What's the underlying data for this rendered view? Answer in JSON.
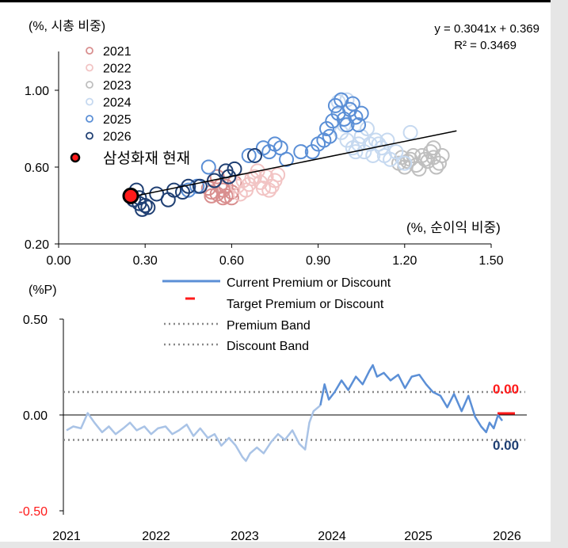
{
  "chart_data": [
    {
      "type": "scatter",
      "ylabel": "(%, 시총 비중)",
      "xlabel": "(%, 순이익 비중)",
      "xlim": [
        0,
        1.5
      ],
      "ylim": [
        0.2,
        1.2
      ],
      "xticks": [
        "0.00",
        "0.30",
        "0.60",
        "0.90",
        "1.20",
        "1.50"
      ],
      "yticks": [
        "0.20",
        "0.60",
        "1.00"
      ],
      "regression_equation": "y = 0.3041x + 0.369",
      "r_squared": "R² = 0.3469",
      "regression_line": {
        "slope": 0.3041,
        "intercept": 0.369,
        "x_range": [
          0.25,
          1.38
        ]
      },
      "legend_position": "top-left",
      "series": [
        {
          "name": "2021",
          "color": "#d98f8f",
          "points": [
            [
              0.53,
              0.47
            ],
            [
              0.55,
              0.46
            ],
            [
              0.57,
              0.48
            ],
            [
              0.58,
              0.45
            ],
            [
              0.56,
              0.5
            ],
            [
              0.54,
              0.53
            ],
            [
              0.59,
              0.55
            ],
            [
              0.52,
              0.49
            ],
            [
              0.6,
              0.47
            ],
            [
              0.57,
              0.44
            ],
            [
              0.55,
              0.55
            ],
            [
              0.61,
              0.52
            ],
            [
              0.58,
              0.5
            ],
            [
              0.53,
              0.45
            ],
            [
              0.6,
              0.44
            ]
          ]
        },
        {
          "name": "2022",
          "color": "#f2c4c4",
          "points": [
            [
              0.62,
              0.5
            ],
            [
              0.64,
              0.53
            ],
            [
              0.66,
              0.51
            ],
            [
              0.68,
              0.55
            ],
            [
              0.7,
              0.52
            ],
            [
              0.72,
              0.55
            ],
            [
              0.74,
              0.5
            ],
            [
              0.76,
              0.56
            ],
            [
              0.73,
              0.48
            ],
            [
              0.69,
              0.58
            ],
            [
              0.65,
              0.48
            ],
            [
              0.71,
              0.49
            ],
            [
              0.67,
              0.54
            ],
            [
              0.75,
              0.53
            ],
            [
              0.63,
              0.46
            ]
          ]
        },
        {
          "name": "2023",
          "color": "#bfbfbf",
          "points": [
            [
              1.18,
              0.62
            ],
            [
              1.2,
              0.6
            ],
            [
              1.22,
              0.64
            ],
            [
              1.24,
              0.61
            ],
            [
              1.26,
              0.66
            ],
            [
              1.28,
              0.63
            ],
            [
              1.3,
              0.65
            ],
            [
              1.32,
              0.62
            ],
            [
              1.25,
              0.59
            ],
            [
              1.29,
              0.68
            ],
            [
              1.31,
              0.6
            ],
            [
              1.27,
              0.64
            ],
            [
              1.23,
              0.66
            ],
            [
              1.21,
              0.63
            ],
            [
              1.33,
              0.66
            ],
            [
              1.3,
              0.7
            ],
            [
              1.19,
              0.65
            ]
          ]
        },
        {
          "name": "2024",
          "color": "#c6d9f0",
          "points": [
            [
              0.98,
              0.78
            ],
            [
              1.0,
              0.74
            ],
            [
              1.02,
              0.7
            ],
            [
              1.04,
              0.72
            ],
            [
              1.06,
              0.68
            ],
            [
              1.08,
              0.72
            ],
            [
              1.1,
              0.74
            ],
            [
              1.03,
              0.68
            ],
            [
              1.05,
              0.76
            ],
            [
              1.12,
              0.7
            ],
            [
              0.99,
              0.82
            ],
            [
              1.01,
              0.9
            ],
            [
              1.0,
              0.95
            ],
            [
              1.13,
              0.66
            ],
            [
              1.15,
              0.64
            ],
            [
              1.17,
              0.68
            ],
            [
              1.2,
              0.62
            ],
            [
              1.22,
              0.78
            ],
            [
              1.07,
              0.8
            ],
            [
              1.09,
              0.66
            ],
            [
              0.97,
              0.94
            ],
            [
              1.11,
              0.72
            ],
            [
              1.14,
              0.74
            ]
          ]
        },
        {
          "name": "2025",
          "color": "#5b8fd6",
          "points": [
            [
              0.93,
              0.8
            ],
            [
              0.95,
              0.84
            ],
            [
              0.97,
              0.88
            ],
            [
              0.99,
              0.85
            ],
            [
              1.01,
              0.9
            ],
            [
              1.03,
              0.86
            ],
            [
              1.05,
              0.88
            ],
            [
              1.0,
              0.82
            ],
            [
              0.96,
              0.92
            ],
            [
              0.94,
              0.76
            ],
            [
              0.92,
              0.74
            ],
            [
              0.9,
              0.72
            ],
            [
              0.88,
              0.68
            ],
            [
              0.84,
              0.68
            ],
            [
              0.79,
              0.64
            ],
            [
              0.77,
              0.7
            ],
            [
              0.75,
              0.72
            ],
            [
              0.73,
              0.68
            ],
            [
              0.71,
              0.7
            ],
            [
              0.52,
              0.6
            ],
            [
              0.48,
              0.5
            ],
            [
              0.45,
              0.48
            ],
            [
              0.66,
              0.66
            ],
            [
              1.02,
              0.93
            ],
            [
              0.98,
              0.95
            ],
            [
              1.04,
              0.82
            ]
          ]
        },
        {
          "name": "2026",
          "color": "#1f3f73",
          "points": [
            [
              0.27,
              0.48
            ],
            [
              0.26,
              0.43
            ],
            [
              0.28,
              0.41
            ],
            [
              0.29,
              0.38
            ],
            [
              0.3,
              0.4
            ],
            [
              0.31,
              0.39
            ],
            [
              0.34,
              0.46
            ],
            [
              0.38,
              0.43
            ],
            [
              0.4,
              0.48
            ],
            [
              0.43,
              0.47
            ],
            [
              0.45,
              0.5
            ],
            [
              0.49,
              0.5
            ],
            [
              0.54,
              0.53
            ],
            [
              0.58,
              0.58
            ],
            [
              0.59,
              0.55
            ],
            [
              0.61,
              0.59
            ],
            [
              0.68,
              0.66
            ],
            [
              0.28,
              0.44
            ]
          ]
        }
      ],
      "highlight": {
        "label": "삼성화재 현재",
        "x": 0.25,
        "y": 0.45,
        "color": "#ff1a1a"
      }
    },
    {
      "type": "line",
      "ylabel": "(%P)",
      "ylim": [
        -0.5,
        0.5
      ],
      "yticks": [
        "0.50",
        "0.00",
        "-0.50"
      ],
      "xticks": [
        "2021",
        "2022",
        "2023",
        "2024",
        "2025",
        "2026"
      ],
      "x_start_year": 2021,
      "x_end_year": 2026.2,
      "premium_band": 0.12,
      "discount_band": -0.13,
      "target_value": 0.0,
      "target_label": "0.00",
      "current_label": "0.00",
      "target_label_color": "#ff1a1a",
      "current_label_color": "#1f3f73",
      "legend": [
        "Current Premium or Discount",
        "Target Premium or Discount",
        "Premium Band",
        "Discount Band"
      ],
      "series": [
        {
          "name": "Current Premium or Discount",
          "colors": {
            "early": "#a9c3e6",
            "late": "#5b8fd6"
          },
          "points": [
            [
              2021.0,
              -0.08
            ],
            [
              2021.08,
              -0.06
            ],
            [
              2021.17,
              -0.07
            ],
            [
              2021.25,
              0.01
            ],
            [
              2021.33,
              -0.04
            ],
            [
              2021.42,
              -0.09
            ],
            [
              2021.5,
              -0.06
            ],
            [
              2021.58,
              -0.1
            ],
            [
              2021.67,
              -0.07
            ],
            [
              2021.75,
              -0.04
            ],
            [
              2021.83,
              -0.08
            ],
            [
              2021.92,
              -0.06
            ],
            [
              2022.0,
              -0.1
            ],
            [
              2022.08,
              -0.07
            ],
            [
              2022.17,
              -0.06
            ],
            [
              2022.25,
              -0.1
            ],
            [
              2022.33,
              -0.08
            ],
            [
              2022.42,
              -0.05
            ],
            [
              2022.5,
              -0.11
            ],
            [
              2022.58,
              -0.07
            ],
            [
              2022.67,
              -0.12
            ],
            [
              2022.75,
              -0.1
            ],
            [
              2022.83,
              -0.16
            ],
            [
              2022.92,
              -0.12
            ],
            [
              2023.0,
              -0.16
            ],
            [
              2023.08,
              -0.22
            ],
            [
              2023.12,
              -0.24
            ],
            [
              2023.17,
              -0.2
            ],
            [
              2023.25,
              -0.17
            ],
            [
              2023.33,
              -0.2
            ],
            [
              2023.42,
              -0.14
            ],
            [
              2023.5,
              -0.1
            ],
            [
              2023.58,
              -0.13
            ],
            [
              2023.67,
              -0.08
            ],
            [
              2023.75,
              -0.15
            ],
            [
              2023.82,
              -0.18
            ],
            [
              2023.87,
              -0.04
            ],
            [
              2023.92,
              0.02
            ],
            [
              2024.0,
              0.05
            ],
            [
              2024.05,
              0.16
            ],
            [
              2024.1,
              0.08
            ],
            [
              2024.17,
              0.12
            ],
            [
              2024.25,
              0.18
            ],
            [
              2024.33,
              0.13
            ],
            [
              2024.42,
              0.2
            ],
            [
              2024.5,
              0.16
            ],
            [
              2024.58,
              0.23
            ],
            [
              2024.62,
              0.26
            ],
            [
              2024.67,
              0.2
            ],
            [
              2024.75,
              0.22
            ],
            [
              2024.83,
              0.18
            ],
            [
              2024.92,
              0.21
            ],
            [
              2025.0,
              0.14
            ],
            [
              2025.08,
              0.2
            ],
            [
              2025.17,
              0.21
            ],
            [
              2025.25,
              0.16
            ],
            [
              2025.33,
              0.12
            ],
            [
              2025.42,
              0.1
            ],
            [
              2025.5,
              0.04
            ],
            [
              2025.58,
              0.11
            ],
            [
              2025.67,
              0.02
            ],
            [
              2025.75,
              0.1
            ],
            [
              2025.83,
              -0.01
            ],
            [
              2025.9,
              -0.06
            ],
            [
              2025.96,
              -0.09
            ],
            [
              2026.0,
              -0.04
            ],
            [
              2026.05,
              -0.07
            ],
            [
              2026.1,
              0.0
            ],
            [
              2026.15,
              -0.03
            ]
          ]
        }
      ]
    }
  ]
}
